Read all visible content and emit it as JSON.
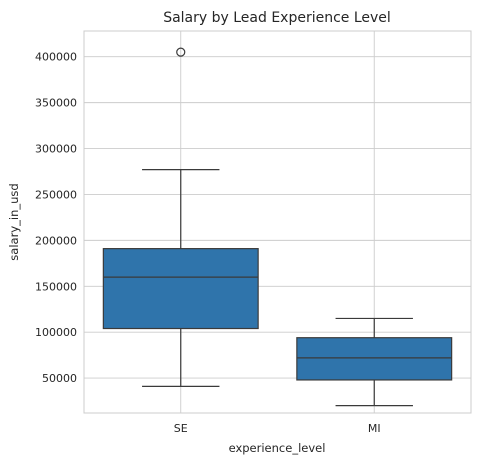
{
  "chart_data": {
    "type": "box",
    "title": "Salary by Lead Experience Level",
    "xlabel": "experience_level",
    "ylabel": "salary_in_usd",
    "ylim": [
      12000,
      428000
    ],
    "yticks": [
      50000,
      100000,
      150000,
      200000,
      250000,
      300000,
      350000,
      400000
    ],
    "ytick_labels": [
      "50000",
      "100000",
      "150000",
      "200000",
      "250000",
      "300000",
      "350000",
      "400000"
    ],
    "grid": true,
    "categories": [
      "SE",
      "MI"
    ],
    "color": "#2f74ab",
    "boxes": [
      {
        "category": "SE",
        "whisker_low": 41000,
        "q1": 104000,
        "median": 160000,
        "q3": 191000,
        "whisker_high": 277000,
        "outliers": [
          405000
        ]
      },
      {
        "category": "MI",
        "whisker_low": 20000,
        "q1": 48000,
        "median": 72000,
        "q3": 94000,
        "whisker_high": 115000,
        "outliers": []
      }
    ]
  }
}
